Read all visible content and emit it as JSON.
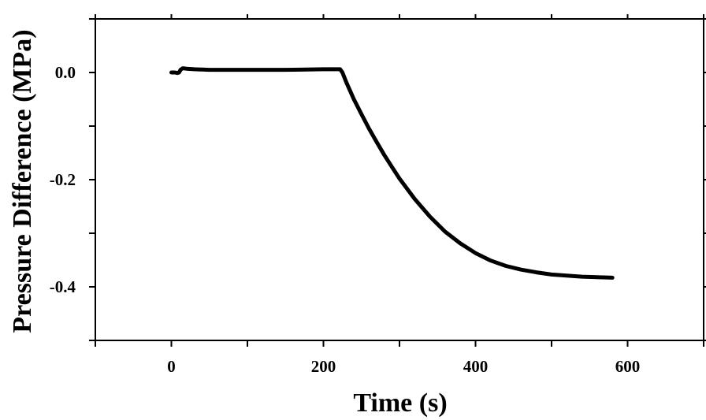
{
  "chart_data": {
    "type": "line",
    "title": "",
    "xlabel": "Time (s)",
    "ylabel": "Pressure Difference (MPa)",
    "xlim": [
      -100,
      700
    ],
    "ylim": [
      -0.5,
      0.1
    ],
    "xticks": [
      0,
      200,
      400,
      600
    ],
    "xtick_labels": [
      "0",
      "200",
      "400",
      "600"
    ],
    "yticks": [
      0.0,
      -0.2,
      -0.4
    ],
    "ytick_labels": [
      "0.0",
      "-0.2",
      "-0.4"
    ],
    "grid": false,
    "legend": "none",
    "series": [
      {
        "color": "#000000",
        "x": [
          0,
          5,
          8,
          10,
          12,
          15,
          20,
          30,
          50,
          100,
          150,
          200,
          222,
          225,
          230,
          240,
          250,
          260,
          270,
          280,
          290,
          300,
          320,
          340,
          360,
          380,
          400,
          420,
          440,
          460,
          480,
          500,
          520,
          540,
          560,
          580
        ],
        "y": [
          0.0,
          0.0,
          -0.001,
          0.0,
          0.005,
          0.008,
          0.007,
          0.006,
          0.005,
          0.005,
          0.005,
          0.006,
          0.006,
          0.0,
          -0.018,
          -0.05,
          -0.078,
          -0.105,
          -0.13,
          -0.154,
          -0.176,
          -0.198,
          -0.236,
          -0.269,
          -0.297,
          -0.319,
          -0.337,
          -0.351,
          -0.361,
          -0.368,
          -0.373,
          -0.377,
          -0.379,
          -0.381,
          -0.382,
          -0.383
        ]
      }
    ]
  }
}
